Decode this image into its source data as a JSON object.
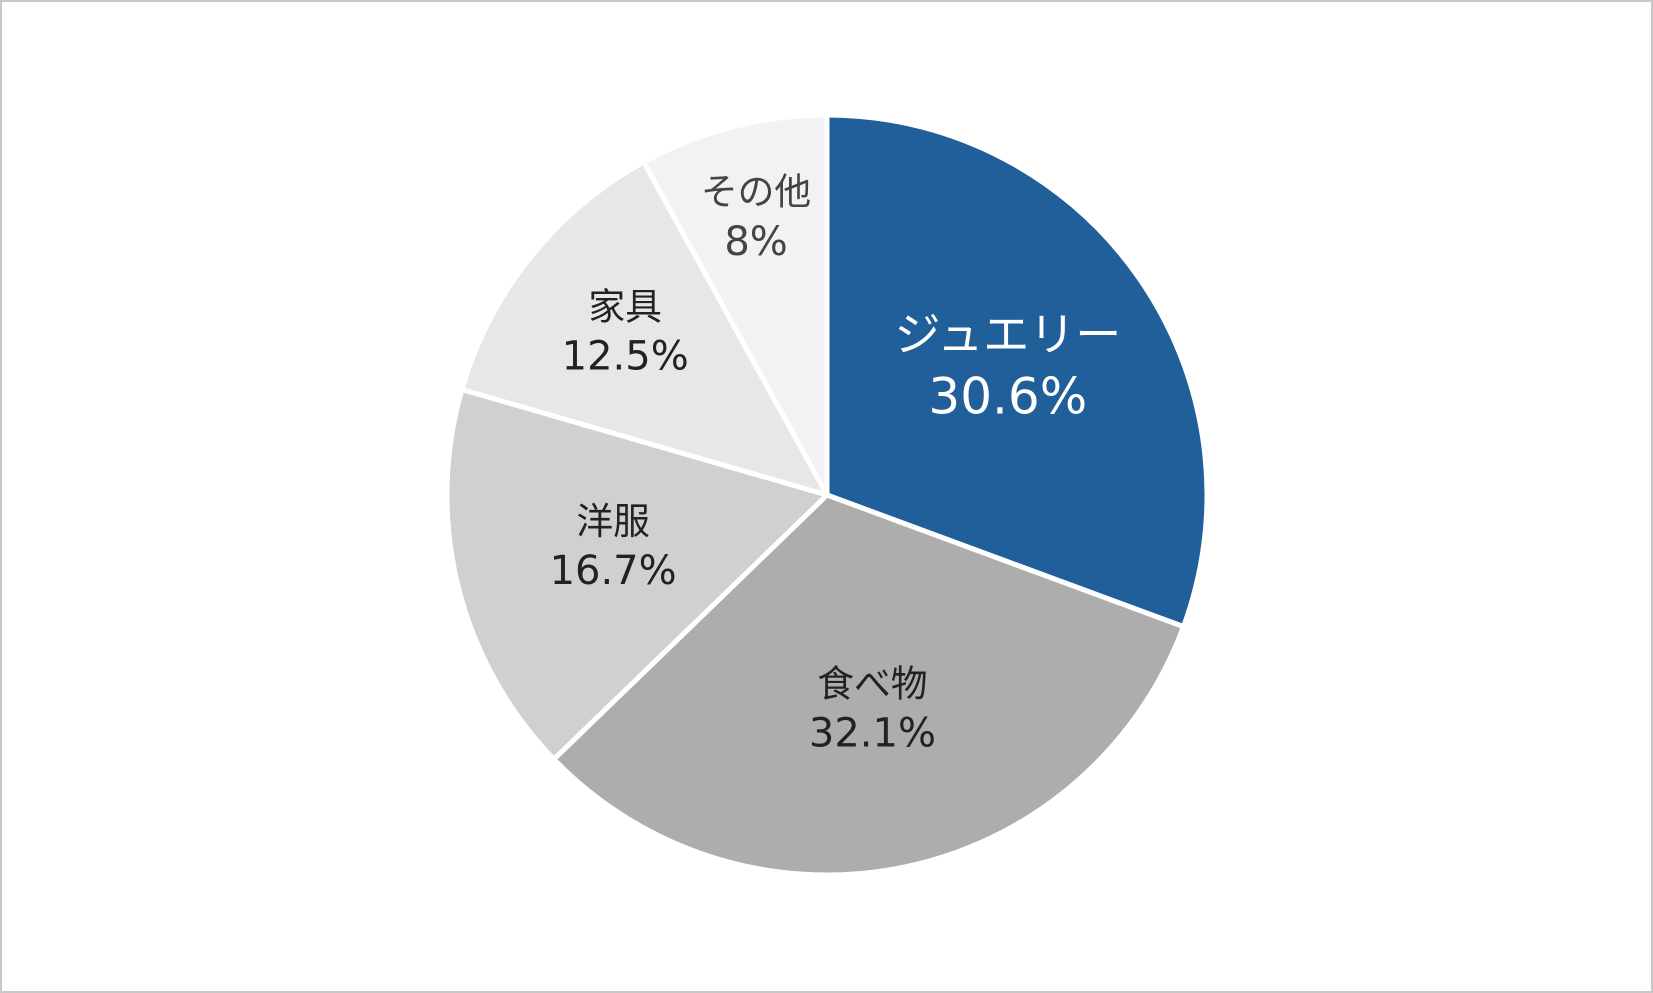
{
  "chart_data": {
    "type": "pie",
    "categories": [
      "ジュエリー",
      "食べ物",
      "洋服",
      "家具",
      "その他"
    ],
    "values": [
      30.6,
      32.1,
      16.7,
      12.5,
      8
    ],
    "value_labels": [
      "30.6%",
      "32.1%",
      "16.7%",
      "12.5%",
      "8%"
    ],
    "colors": [
      "#215f9a",
      "#adadad",
      "#d0d0d0",
      "#e7e7e7",
      "#f2f2f2"
    ],
    "label_colors": [
      "#ffffff",
      "#222222",
      "#222222",
      "#222222",
      "#444444"
    ]
  }
}
